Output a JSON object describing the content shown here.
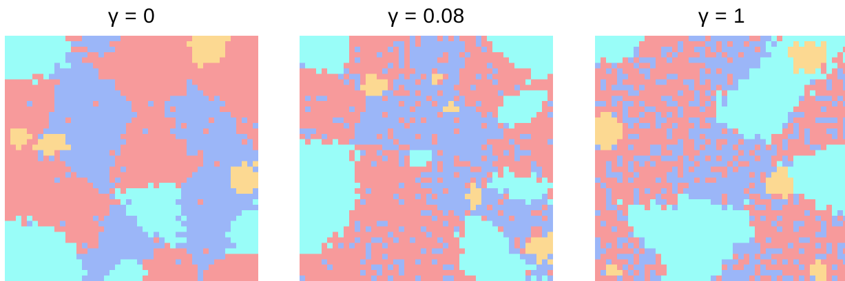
{
  "panels": [
    {
      "title": "γ = 0",
      "gamma": 0
    },
    {
      "title": "γ = 0.08",
      "gamma": 0.08
    },
    {
      "title": "γ = 1",
      "gamma": 1
    }
  ],
  "colors": {
    "red": "#f79a9b",
    "blue": "#9bb6f8",
    "cyan": "#99fdf8",
    "yellow": "#fcd992"
  }
}
